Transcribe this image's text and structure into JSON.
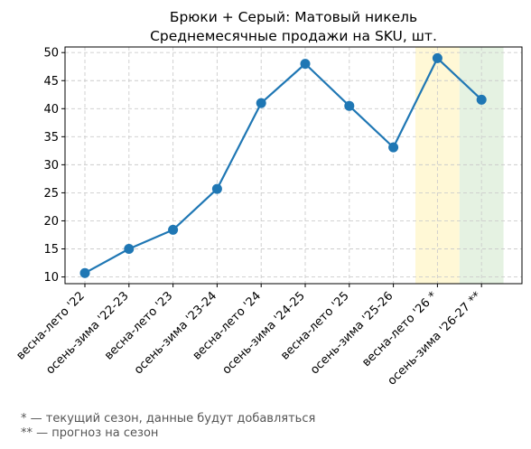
{
  "chart_data": {
    "type": "line",
    "title_line1": "Брюки + Серый: Матовый никель",
    "title_line2": "Среднемесячные продажи на SKU, шт.",
    "xlabel": "",
    "ylabel": "",
    "categories": [
      "весна-лето '22",
      "осень-зима '22-23",
      "весна-лето '23",
      "осень-зима '23-24",
      "весна-лето '24",
      "осень-зима '24-25",
      "весна-лето '25",
      "осень-зима '25-26",
      "весна-лето '26 *",
      "осень-зима '26-27 **"
    ],
    "series": [
      {
        "values": [
          10.7,
          15.0,
          18.4,
          25.7,
          41.0,
          48.0,
          40.5,
          33.1,
          49.0,
          41.6
        ],
        "color": "#1f77b4"
      }
    ],
    "yticks": [
      10,
      15,
      20,
      25,
      30,
      35,
      40,
      45,
      50
    ],
    "ylim": [
      8.8,
      51.0
    ],
    "grid": true,
    "highlights": [
      {
        "category_index": 8,
        "color": "#fff8d6"
      },
      {
        "category_index": 9,
        "color": "#e5f2e2"
      }
    ]
  },
  "footnotes": {
    "current": "* — текущий сезон, данные будут добавляться",
    "forecast": "** — прогноз на сезон"
  }
}
